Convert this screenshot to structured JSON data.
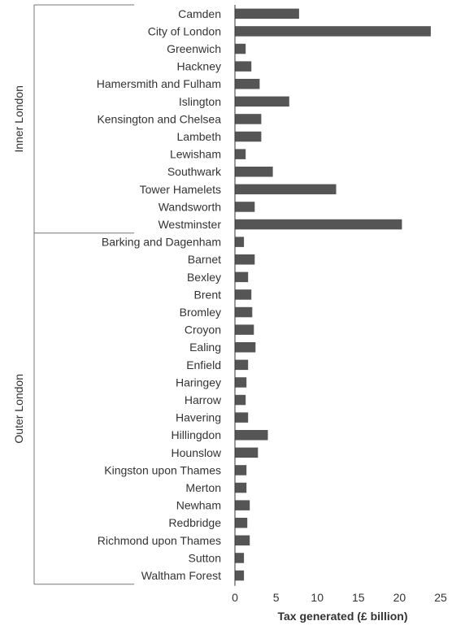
{
  "chart_data": {
    "type": "bar",
    "orientation": "horizontal",
    "xlabel": "Tax generated (£ billion)",
    "ylabel": "",
    "xlim": [
      0,
      25
    ],
    "x_ticks": [
      0,
      5,
      10,
      15,
      20,
      25
    ],
    "bar_color": "#555555",
    "groups": [
      {
        "name": "Inner London",
        "categories": [
          "Camden",
          "City of London",
          "Greenwich",
          "Hackney",
          "Hamersmith and Fulham",
          "Islington",
          "Kensington and Chelsea",
          "Lambeth",
          "Lewisham",
          "Southwark",
          "Tower Hamelets",
          "Wandsworth",
          "Westminster"
        ]
      },
      {
        "name": "Outer London",
        "categories": [
          "Barking and Dagenham",
          "Barnet",
          "Bexley",
          "Brent",
          "Bromley",
          "Croyon",
          "Ealing",
          "Enfield",
          "Haringey",
          "Harrow",
          "Havering",
          "Hillingdon",
          "Hounslow",
          "Kingston upon Thames",
          "Merton",
          "Newham",
          "Redbridge",
          "Richmond upon Thames",
          "Sutton",
          "Waltham Forest"
        ]
      }
    ],
    "categories": [
      "Camden",
      "City of London",
      "Greenwich",
      "Hackney",
      "Hamersmith and Fulham",
      "Islington",
      "Kensington and Chelsea",
      "Lambeth",
      "Lewisham",
      "Southwark",
      "Tower Hamelets",
      "Wandsworth",
      "Westminster",
      "Barking and Dagenham",
      "Barnet",
      "Bexley",
      "Brent",
      "Bromley",
      "Croyon",
      "Ealing",
      "Enfield",
      "Haringey",
      "Harrow",
      "Havering",
      "Hillingdon",
      "Hounslow",
      "Kingston upon Thames",
      "Merton",
      "Newham",
      "Redbridge",
      "Richmond upon Thames",
      "Sutton",
      "Waltham Forest"
    ],
    "values": [
      7.8,
      23.8,
      1.3,
      2.0,
      3.0,
      6.6,
      3.2,
      3.2,
      1.3,
      4.6,
      12.3,
      2.4,
      20.3,
      1.1,
      2.4,
      1.6,
      2.0,
      2.1,
      2.3,
      2.5,
      1.6,
      1.4,
      1.3,
      1.6,
      4.0,
      2.8,
      1.4,
      1.4,
      1.8,
      1.5,
      1.8,
      1.1,
      1.1
    ]
  }
}
